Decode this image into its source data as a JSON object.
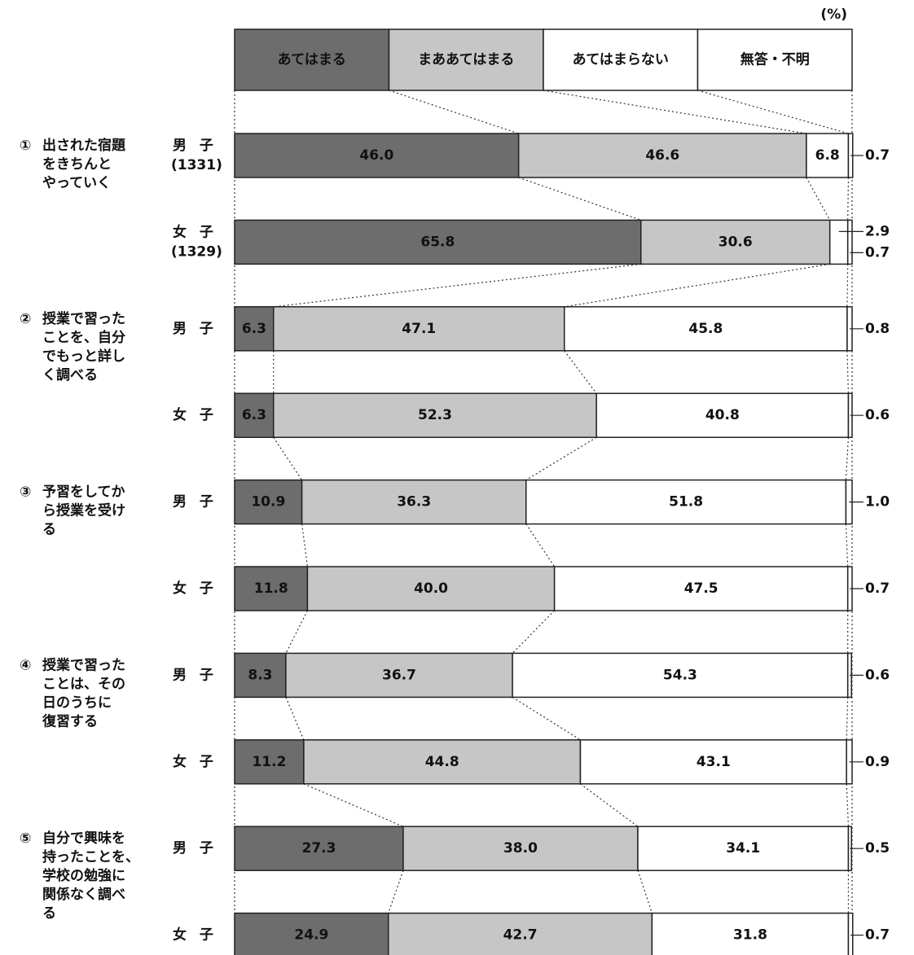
{
  "chart_data": {
    "type": "stacked-bar-horizontal",
    "unit": "(%)",
    "groups": [
      {
        "number": "①",
        "lines": [
          "出された宿題",
          "をきちんと",
          "やっていく"
        ]
      },
      {
        "number": "②",
        "lines": [
          "授業で習った",
          "ことを、自分",
          "でもっと詳し",
          "く調べる"
        ]
      },
      {
        "number": "③",
        "lines": [
          "予習をしてか",
          "ら授業を受け",
          "る"
        ]
      },
      {
        "number": "④",
        "lines": [
          "授業で習った",
          "ことは、その",
          "日のうちに",
          "復習する"
        ]
      },
      {
        "number": "⑤",
        "lines": [
          "自分で興味を",
          "持ったことを、",
          "学校の勉強に",
          "関係なく調べ",
          "る"
        ]
      }
    ],
    "categories": [
      "男 子",
      "女 子",
      "男 子",
      "女 子",
      "男 子",
      "女 子",
      "男 子",
      "女 子",
      "男 子",
      "女 子"
    ],
    "counts": [
      "(1331)",
      "(1329)",
      null,
      null,
      null,
      null,
      null,
      null,
      null,
      null
    ],
    "xlim": [
      0,
      100
    ],
    "series": [
      {
        "name": "あてはまる",
        "color": "#6d6d6d",
        "values": [
          46.0,
          65.8,
          6.3,
          6.3,
          10.9,
          11.8,
          8.3,
          11.2,
          27.3,
          24.9
        ],
        "value_labels": [
          "46.0",
          "65.8",
          "6.3",
          "6.3",
          "10.9",
          "11.8",
          "8.3",
          "11.2",
          "27.3",
          "24.9"
        ]
      },
      {
        "name": "まああてはまる",
        "color": "#c6c6c6",
        "values": [
          46.6,
          30.6,
          47.1,
          52.3,
          36.3,
          40.0,
          36.7,
          44.8,
          38.0,
          42.7
        ],
        "value_labels": [
          "46.6",
          "30.6",
          "47.1",
          "52.3",
          "36.3",
          "40.0",
          "36.7",
          "44.8",
          "38.0",
          "42.7"
        ]
      },
      {
        "name": "あてはまらない",
        "color": "#ffffff",
        "values": [
          6.8,
          2.9,
          45.8,
          40.8,
          51.8,
          47.5,
          54.3,
          43.1,
          34.1,
          31.8
        ],
        "value_labels": [
          "6.8",
          "2.9",
          "45.8",
          "40.8",
          "51.8",
          "47.5",
          "54.3",
          "43.1",
          "34.1",
          "31.8"
        ]
      },
      {
        "name": "無答・不明",
        "color": "#ffffff",
        "values": [
          0.7,
          0.7,
          0.8,
          0.6,
          1.0,
          0.7,
          0.6,
          0.9,
          0.5,
          0.7
        ],
        "value_labels": [
          "0.7",
          "0.7",
          "0.8",
          "0.6",
          "1.0",
          "0.7",
          "0.6",
          "0.9",
          "0.5",
          "0.7"
        ]
      }
    ]
  }
}
